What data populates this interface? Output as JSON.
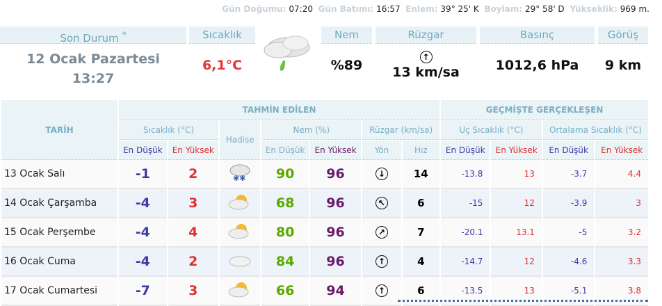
{
  "info": {
    "sunrise_label": "Gün Doğumu:",
    "sunrise": "07:20",
    "sunset_label": "Gün Batımı:",
    "sunset": "16:57",
    "lat_label": "Enlem:",
    "lat": "39° 25' K",
    "lon_label": "Boylam:",
    "lon": "29° 58' D",
    "elev_label": "Yükseklik:",
    "elev": "969 m."
  },
  "current": {
    "status_label": "Son Durum",
    "status_mark": "*",
    "date": "12 Ocak Pazartesi",
    "time": "13:27",
    "temp_label": "Sıcaklık",
    "temp": "6,1°C",
    "icon": "cloud-rain-icon",
    "hum_label": "Nem",
    "hum": "%89",
    "wind_label": "Rüzgar",
    "wind_dir": "N",
    "wind": "13 km/sa",
    "press_label": "Basınç",
    "press": "1012,6 hPa",
    "vis_label": "Görüş",
    "vis": "9 km"
  },
  "table": {
    "date_h": "TARİH",
    "forecast_h": "TAHMİN EDİLEN",
    "past_h": "GEÇMİŞTE GERÇEKLEŞEN",
    "temp_h": "Sıcaklık (°C)",
    "event_h": "Hadise",
    "hum_h": "Nem (%)",
    "wind_h": "Rüzgar (km/sa)",
    "ext_h": "Uç Sıcaklık (°C)",
    "avg_h": "Ortalama Sıcaklık (°C)",
    "min": "En Düşük",
    "max": "En Yüksek",
    "dir": "Yön",
    "speed": "Hız",
    "rows": [
      {
        "date": "13 Ocak Salı",
        "tmin": "-1",
        "tmax": "2",
        "icon": "snow-cloud-icon",
        "hmin": "90",
        "hmax": "96",
        "dir": "↓",
        "spd": "14",
        "emin": "-13.8",
        "emax": "13",
        "amin": "-3.7",
        "amax": "4.4"
      },
      {
        "date": "14 Ocak Çarşamba",
        "tmin": "-4",
        "tmax": "3",
        "icon": "sun-cloud-icon",
        "hmin": "68",
        "hmax": "96",
        "dir": "↖",
        "spd": "6",
        "emin": "-15",
        "emax": "12",
        "amin": "-3.9",
        "amax": "3"
      },
      {
        "date": "15 Ocak Perşembe",
        "tmin": "-4",
        "tmax": "4",
        "icon": "sun-cloud-icon",
        "hmin": "80",
        "hmax": "96",
        "dir": "↗",
        "spd": "7",
        "emin": "-20.1",
        "emax": "13.1",
        "amin": "-5",
        "amax": "3.2"
      },
      {
        "date": "16 Ocak Cuma",
        "tmin": "-4",
        "tmax": "2",
        "icon": "cloud-icon",
        "hmin": "84",
        "hmax": "96",
        "dir": "↑",
        "spd": "4",
        "emin": "-14.7",
        "emax": "12",
        "amin": "-4.6",
        "amax": "3.3"
      },
      {
        "date": "17 Ocak Cumartesi",
        "tmin": "-7",
        "tmax": "3",
        "icon": "sun-cloud-icon",
        "hmin": "66",
        "hmax": "94",
        "dir": "↑",
        "spd": "6",
        "emin": "-13.5",
        "emax": "13",
        "amin": "-5.1",
        "amax": "3.8"
      }
    ]
  }
}
